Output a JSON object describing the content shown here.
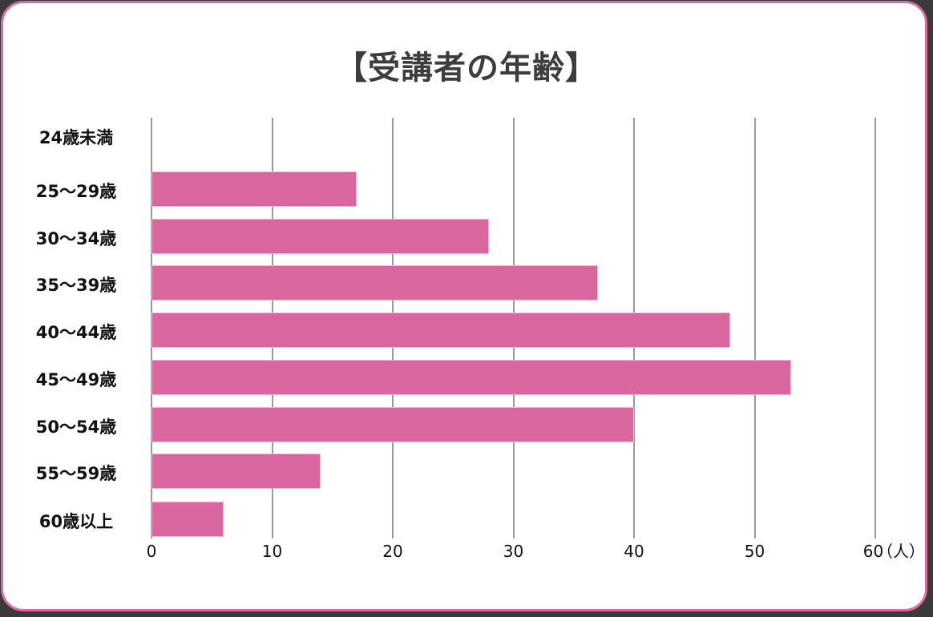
{
  "title": "【受講者の年齢】",
  "colors": {
    "bar": "#da66a0",
    "border": "#dc69a0",
    "grid": "#9a9a9a",
    "title": "#3d3d3d"
  },
  "axis": {
    "unit": "（人）",
    "ticks": [
      "0",
      "10",
      "20",
      "30",
      "40",
      "50",
      "60"
    ]
  },
  "categories": [
    "24歳未満",
    "25〜29歳",
    "30〜34歳",
    "35〜39歳",
    "40〜44歳",
    "45〜49歳",
    "50〜54歳",
    "55〜59歳",
    "60歳以上"
  ],
  "chart_data": {
    "type": "bar",
    "orientation": "horizontal",
    "title": "【受講者の年齢】",
    "categories": [
      "24歳未満",
      "25〜29歳",
      "30〜34歳",
      "35〜39歳",
      "40〜44歳",
      "45〜49歳",
      "50〜54歳",
      "55〜59歳",
      "60歳以上"
    ],
    "values": [
      0,
      17,
      28,
      37,
      48,
      53,
      40,
      14,
      6
    ],
    "xlabel": "（人）",
    "ylabel": "",
    "xlim": [
      0,
      60
    ],
    "xticks": [
      0,
      10,
      20,
      30,
      40,
      50,
      60
    ],
    "grid": true,
    "legend": null
  }
}
